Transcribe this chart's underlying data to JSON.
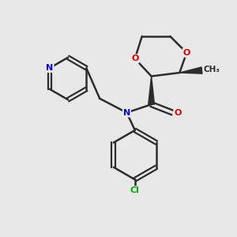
{
  "background_color": "#e8e8e8",
  "bond_color": "#2d2d2d",
  "atom_colors": {
    "O": "#cc0000",
    "N": "#0000cc",
    "Cl": "#00aa00",
    "C": "#2d2d2d"
  },
  "figsize": [
    3.0,
    3.0
  ],
  "dpi": 100
}
